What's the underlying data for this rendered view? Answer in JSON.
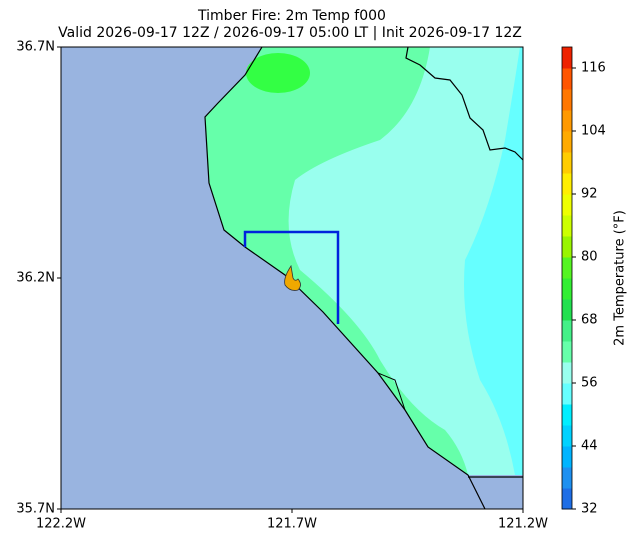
{
  "title": "Timber Fire: 2m Temp f000",
  "subtitle": "Valid 2026-09-17 12Z / 2026-09-17 05:00 LT | Init 2026-09-17 12Z",
  "map": {
    "xlim": [
      -122.2,
      -121.2
    ],
    "ylim": [
      35.7,
      36.7
    ],
    "xticks": [
      {
        "value": -122.2,
        "label": "122.2W"
      },
      {
        "value": -121.7,
        "label": "121.7W"
      },
      {
        "value": -121.2,
        "label": "121.2W"
      }
    ],
    "yticks": [
      {
        "value": 35.7,
        "label": "35.7N"
      },
      {
        "value": 36.2,
        "label": "36.2N"
      },
      {
        "value": 36.7,
        "label": "36.7N"
      }
    ]
  },
  "colorbar": {
    "label": "2m Temperature (°F)",
    "clim": [
      32,
      120
    ],
    "ticks": [
      32,
      44,
      56,
      68,
      80,
      92,
      104,
      116
    ],
    "colors": [
      "#1e6ee6",
      "#1e90f0",
      "#00b4ff",
      "#00d2ff",
      "#00eeff",
      "#66ffff",
      "#99ffee",
      "#66ffaa",
      "#44f088",
      "#22e050",
      "#33ee33",
      "#55f522",
      "#99f500",
      "#ccff00",
      "#eeff00",
      "#ffee00",
      "#ffcc00",
      "#ffaa00",
      "#ff9900",
      "#ff7700",
      "#ff5500",
      "#ee2200"
    ]
  }
}
